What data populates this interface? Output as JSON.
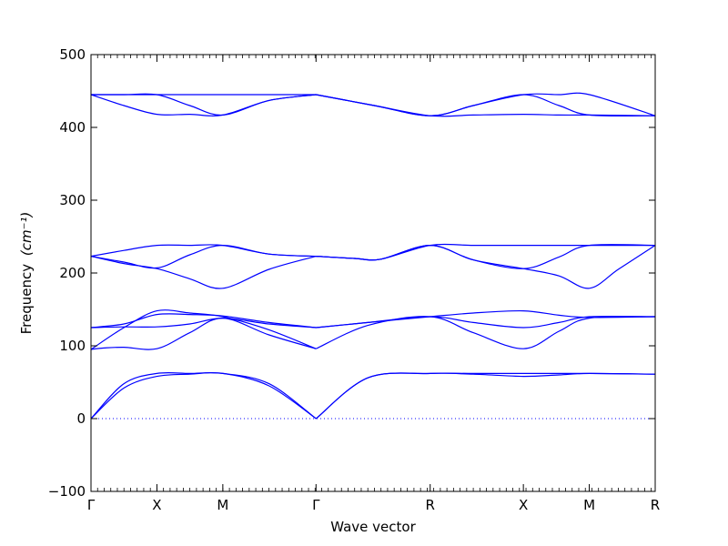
{
  "chart_data": {
    "type": "line",
    "xlabel": "Wave vector",
    "ylabel": "Frequency",
    "ylabel_unit": "(cm⁻¹)",
    "ylim": [
      -100,
      500
    ],
    "yticks": [
      -100,
      0,
      100,
      200,
      300,
      400,
      500
    ],
    "ytick_labels": [
      "−100",
      "0",
      "100",
      "200",
      "300",
      "400",
      "500"
    ],
    "x_path": [
      {
        "label": "Γ",
        "x": 0.0
      },
      {
        "label": "X",
        "x": 1.0
      },
      {
        "label": "M",
        "x": 2.0
      },
      {
        "label": "Γ",
        "x": 3.414
      },
      {
        "label": "R",
        "x": 5.146
      },
      {
        "label": "X",
        "x": 6.56
      },
      {
        "label": "M",
        "x": 7.56
      },
      {
        "label": "R",
        "x": 8.56
      }
    ],
    "zero_line": {
      "y": 0,
      "style": "dotted"
    },
    "series_color": "#0000ff",
    "series": [
      {
        "x": [
          0,
          0.5,
          1,
          1.5,
          2,
          2.7,
          3.414
        ],
        "values": [
          0,
          42,
          58,
          61,
          62,
          45,
          0
        ]
      },
      {
        "x": [
          0,
          0.5,
          1,
          1.5,
          2,
          2.7,
          3.414
        ],
        "values": [
          0,
          48,
          62,
          62,
          62,
          48,
          0
        ]
      },
      {
        "x": [
          3.414,
          4.2,
          5.146,
          5.8,
          6.56,
          7.1,
          7.56,
          8.56
        ],
        "values": [
          0,
          56,
          62,
          62,
          62,
          62,
          62,
          61
        ]
      },
      {
        "x": [
          3.414,
          4.2,
          5.146,
          5.8,
          6.56,
          7.1,
          7.56,
          8.56
        ],
        "values": [
          0,
          56,
          62,
          61,
          58,
          60,
          62,
          61
        ]
      },
      {
        "x": [
          0,
          0.2,
          0.5,
          1,
          1.5,
          2,
          2.7,
          3.414
        ],
        "values": [
          95,
          97,
          98,
          96,
          118,
          138,
          115,
          96
        ]
      },
      {
        "x": [
          0,
          0.5,
          1,
          1.5,
          2,
          2.7,
          3.414
        ],
        "values": [
          95,
          125,
          148,
          145,
          140,
          122,
          96
        ]
      },
      {
        "x": [
          0,
          0.5,
          1,
          1.5,
          2,
          2.7,
          3.414
        ],
        "values": [
          125,
          126,
          126,
          130,
          138,
          130,
          125
        ]
      },
      {
        "x": [
          0,
          0.5,
          1,
          1.5,
          2,
          2.7,
          3.414
        ],
        "values": [
          125,
          130,
          143,
          143,
          141,
          132,
          125
        ]
      },
      {
        "x": [
          3.414,
          4.2,
          5.146,
          5.8,
          6.56,
          7.1,
          7.56,
          8.56
        ],
        "values": [
          96,
          128,
          140,
          118,
          96,
          120,
          138,
          140
        ]
      },
      {
        "x": [
          3.414,
          4.2,
          5.146,
          5.8,
          6.56,
          7.1,
          7.56,
          8.56
        ],
        "values": [
          125,
          132,
          140,
          132,
          125,
          132,
          140,
          140
        ]
      },
      {
        "x": [
          3.414,
          4.2,
          5.146,
          5.8,
          6.56,
          7.1,
          7.56,
          8.56
        ],
        "values": [
          125,
          132,
          140,
          145,
          148,
          142,
          139,
          140
        ]
      },
      {
        "x": [
          0,
          0.5,
          1,
          1.5,
          2,
          2.7,
          3.414
        ],
        "values": [
          223,
          213,
          206,
          192,
          179,
          205,
          223
        ]
      },
      {
        "x": [
          0,
          0.5,
          1,
          1.5,
          2,
          2.7,
          3.414
        ],
        "values": [
          223,
          215,
          207,
          225,
          238,
          226,
          223
        ]
      },
      {
        "x": [
          0,
          0.5,
          1,
          1.5,
          2,
          2.7,
          3.414
        ],
        "values": [
          223,
          231,
          238,
          238,
          238,
          226,
          223
        ]
      },
      {
        "x": [
          3.414,
          4.0,
          4.4,
          5.146,
          5.8,
          6.56,
          7.1,
          7.56,
          8.0,
          8.56
        ],
        "values": [
          223,
          220,
          219,
          238,
          218,
          206,
          196,
          179,
          205,
          238
        ]
      },
      {
        "x": [
          3.414,
          4.0,
          4.4,
          5.146,
          5.8,
          6.56,
          7.1,
          7.56,
          8.56
        ],
        "values": [
          223,
          220,
          219,
          238,
          218,
          206,
          222,
          238,
          238
        ]
      },
      {
        "x": [
          3.414,
          4.0,
          4.4,
          5.146,
          5.8,
          6.56,
          7.1,
          7.56,
          8.56
        ],
        "values": [
          223,
          220,
          219,
          238,
          238,
          238,
          238,
          238,
          238
        ]
      },
      {
        "x": [
          0,
          0.5,
          1,
          1.5,
          2,
          2.7,
          3.414
        ],
        "values": [
          445,
          430,
          418,
          418,
          417,
          437,
          445
        ]
      },
      {
        "x": [
          0,
          0.5,
          1,
          1.5,
          2,
          2.7,
          3.414
        ],
        "values": [
          445,
          445,
          445,
          430,
          417,
          437,
          445
        ]
      },
      {
        "x": [
          0,
          0.5,
          1,
          1.5,
          2,
          2.7,
          3.414
        ],
        "values": [
          445,
          445,
          445,
          445,
          445,
          445,
          445
        ]
      },
      {
        "x": [
          3.414,
          4.3,
          5.146,
          5.8,
          6.56,
          7.1,
          7.56,
          8.56
        ],
        "values": [
          445,
          430,
          416,
          430,
          445,
          430,
          417,
          416
        ]
      },
      {
        "x": [
          3.414,
          4.3,
          5.146,
          5.8,
          6.56,
          7.1,
          7.56,
          8.56
        ],
        "values": [
          445,
          430,
          416,
          430,
          445,
          445,
          445,
          416
        ]
      },
      {
        "x": [
          3.414,
          4.3,
          5.146,
          5.8,
          6.56,
          7.1,
          7.56,
          8.56
        ],
        "values": [
          445,
          430,
          416,
          417,
          418,
          417,
          417,
          416
        ]
      }
    ]
  }
}
